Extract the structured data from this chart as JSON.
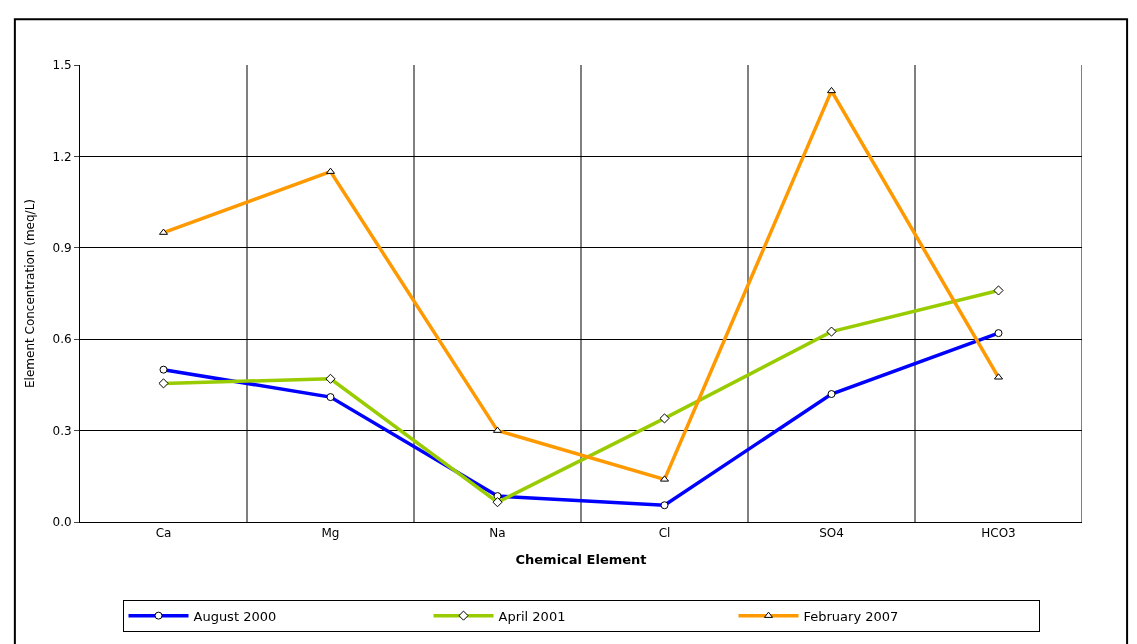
{
  "chart_data": {
    "type": "line",
    "xlabel": "Chemical Element",
    "ylabel": "Element Concentration (meq/L)",
    "categories": [
      "Ca",
      "Mg",
      "Na",
      "Cl",
      "SO4",
      "HCO3"
    ],
    "ylim": [
      0,
      1.5
    ],
    "yticks": [
      {
        "value": 0,
        "label": "0.0"
      },
      0.3,
      0.6,
      0.9,
      1.2,
      1.5
    ],
    "grid": true,
    "legend": "bottom",
    "line_style": "solid",
    "series": [
      {
        "name": "August 2000",
        "color": "#0000ff",
        "marker": "circle",
        "values": [
          0.5,
          0.41,
          0.085,
          0.055,
          0.42,
          0.62
        ]
      },
      {
        "name": "April 2001",
        "color": "#99cc00",
        "marker": "diamond",
        "values": [
          0.455,
          0.47,
          0.065,
          0.34,
          0.625,
          0.76
        ]
      },
      {
        "name": "February 2007",
        "color": "#ff9900",
        "marker": "triangle",
        "values": [
          0.95,
          1.15,
          0.3,
          0.14,
          1.415,
          0.475
        ]
      }
    ]
  }
}
